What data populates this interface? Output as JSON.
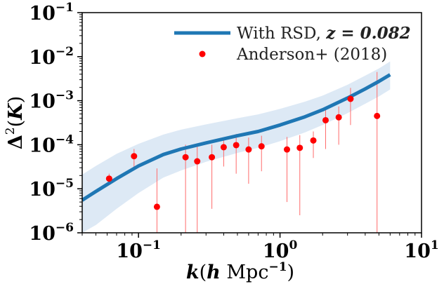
{
  "chart_data": {
    "type": "line+scatter",
    "title": "",
    "xscale": "log",
    "yscale": "log",
    "xlim": [
      0.04,
      10
    ],
    "ylim": [
      1e-06,
      0.1
    ],
    "x_ticks": [
      {
        "value": 0.1,
        "base": "10",
        "exp": "−1"
      },
      {
        "value": 1,
        "base": "10",
        "exp": "0"
      },
      {
        "value": 10,
        "base": "10",
        "exp": "1"
      }
    ],
    "y_ticks": [
      {
        "value": 1e-06,
        "base": "10",
        "exp": "−6"
      },
      {
        "value": 1e-05,
        "base": "10",
        "exp": "−5"
      },
      {
        "value": 0.0001,
        "base": "10",
        "exp": "−4"
      },
      {
        "value": 0.001,
        "base": "10",
        "exp": "−3"
      },
      {
        "value": 0.01,
        "base": "10",
        "exp": "−2"
      },
      {
        "value": 0.1,
        "base": "10",
        "exp": "−1"
      }
    ],
    "xlabel": {
      "var": "k",
      "paren_open": "(",
      "var2": "h",
      "unit": " Mpc",
      "exp": "−1",
      "paren_close": ")"
    },
    "ylabel": {
      "sym": "Δ",
      "exp": "2",
      "open": "(",
      "var": "K",
      "close": ")"
    },
    "legend": {
      "position": "top-right",
      "model_label": "With RSD, ",
      "model_label_z": "z = 0.082",
      "data_label": "Anderson+ (2018)"
    },
    "colors": {
      "model": "#1f77b4",
      "band": "#dde9f5",
      "data": "#ff0000",
      "errorbar": "#ff6b6b"
    },
    "series": [
      {
        "name": "With RSD, z = 0.082",
        "kind": "line",
        "x": [
          0.04,
          0.05,
          0.07,
          0.1,
          0.15,
          0.2,
          0.3,
          0.5,
          0.7,
          1.0,
          1.5,
          2.0,
          3.0,
          4.0,
          5.0,
          6.0
        ],
        "y": [
          5.5e-06,
          8.7e-06,
          1.7e-05,
          3.3e-05,
          6e-05,
          8e-05,
          0.00011,
          0.00016,
          0.0002,
          0.00028,
          0.00043,
          0.00062,
          0.00115,
          0.00185,
          0.00275,
          0.0039
        ],
        "band_upper": [
          2.1e-05,
          3.3e-05,
          6.2e-05,
          0.000105,
          0.00017,
          0.00022,
          0.00029,
          0.0004,
          0.00049,
          0.00065,
          0.00095,
          0.0013,
          0.0023,
          0.0037,
          0.0054,
          0.0078
        ],
        "band_lower": [
          1e-06,
          1.5e-06,
          3.5e-06,
          8e-06,
          1.8e-05,
          2.6e-05,
          4.1e-05,
          6.5e-05,
          8.5e-05,
          0.00012,
          0.00019,
          0.00028,
          0.00052,
          0.00085,
          0.00125,
          0.0018
        ]
      },
      {
        "name": "Anderson+ (2018)",
        "kind": "scatter",
        "points": [
          {
            "x": 0.062,
            "y": 1.7e-05,
            "lo": 1.3e-05,
            "hi": 2.2e-05
          },
          {
            "x": 0.093,
            "y": 5.5e-05,
            "lo": 2.8e-05,
            "hi": 8e-05
          },
          {
            "x": 0.135,
            "y": 3.9e-06,
            "lo": 1e-06,
            "hi": 2.9e-05
          },
          {
            "x": 0.215,
            "y": 5.2e-05,
            "lo": 1e-06,
            "hi": 0.0001
          },
          {
            "x": 0.26,
            "y": 4.2e-05,
            "lo": 1e-06,
            "hi": 0.0001
          },
          {
            "x": 0.33,
            "y": 5.2e-05,
            "lo": 3.5e-06,
            "hi": 0.0001
          },
          {
            "x": 0.4,
            "y": 8.8e-05,
            "lo": 3.2e-05,
            "hi": 0.00014
          },
          {
            "x": 0.49,
            "y": 9.8e-05,
            "lo": 2.2e-05,
            "hi": 0.000175
          },
          {
            "x": 0.6,
            "y": 7.8e-05,
            "lo": 1.3e-05,
            "hi": 0.000145
          },
          {
            "x": 0.74,
            "y": 9.2e-05,
            "lo": 2.5e-05,
            "hi": 0.00016
          },
          {
            "x": 1.12,
            "y": 7.8e-05,
            "lo": 5e-06,
            "hi": 0.00015
          },
          {
            "x": 1.38,
            "y": 8.5e-05,
            "lo": 2.5e-06,
            "hi": 0.000165
          },
          {
            "x": 1.72,
            "y": 0.000125,
            "lo": 5e-05,
            "hi": 0.0002
          },
          {
            "x": 2.1,
            "y": 0.00036,
            "lo": 8e-05,
            "hi": 0.00062
          },
          {
            "x": 2.6,
            "y": 0.00042,
            "lo": 0.0001,
            "hi": 0.00074
          },
          {
            "x": 3.15,
            "y": 0.0011,
            "lo": 0.00028,
            "hi": 0.00195
          },
          {
            "x": 4.85,
            "y": 0.00045,
            "lo": 1e-06,
            "hi": 0.0045
          }
        ]
      }
    ]
  }
}
